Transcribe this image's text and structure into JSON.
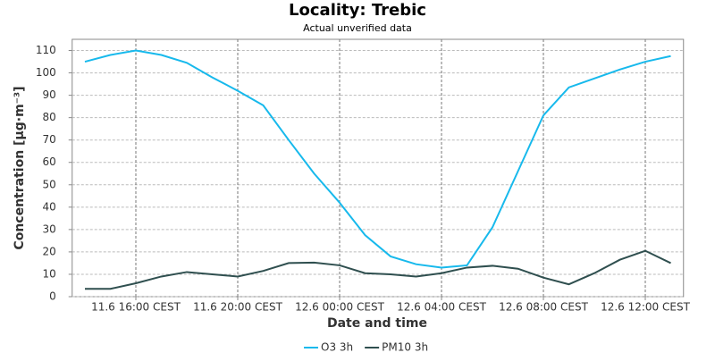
{
  "chart_data": {
    "type": "line",
    "title": "Locality: Trebic",
    "subtitle": "Actual unverified data",
    "x_label": "Date and time",
    "y_label": "Concentration [µg·m⁻³]",
    "categories": [
      null,
      null,
      "11.6 16:00 CEST",
      null,
      null,
      null,
      "11.6 20:00 CEST",
      null,
      null,
      null,
      "12.6 00:00 CEST",
      null,
      null,
      null,
      "12.6 04:00 CEST",
      null,
      null,
      null,
      "12.6 08:00 CEST",
      null,
      null,
      null,
      "12.6 12:00 CEST",
      null
    ],
    "series": [
      {
        "name": "O3 3h",
        "color": "#17b9ec",
        "values": [
          105,
          108,
          110,
          108,
          104.5,
          98,
          92,
          85.5,
          70,
          55,
          42,
          27.5,
          18,
          14.5,
          13,
          14,
          31,
          56,
          81,
          93.5,
          97.5,
          101.5,
          105,
          107.5
        ]
      },
      {
        "name": "PM10 3h",
        "color": "#2f4f4f",
        "values": [
          3.5,
          3.5,
          6,
          9,
          11,
          10,
          9,
          11.5,
          15,
          15.2,
          14,
          10.5,
          10,
          9,
          10.5,
          13,
          13.8,
          12.5,
          8.5,
          5.5,
          10.5,
          16.5,
          20.5,
          15
        ]
      }
    ],
    "ylim": [
      0,
      115
    ],
    "yticks": [
      0,
      10,
      20,
      30,
      40,
      50,
      60,
      70,
      80,
      90,
      100,
      110
    ],
    "grid": true,
    "legend": "bottom"
  }
}
